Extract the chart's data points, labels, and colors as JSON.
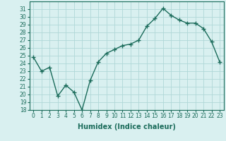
{
  "x": [
    0,
    1,
    2,
    3,
    4,
    5,
    6,
    7,
    8,
    9,
    10,
    11,
    12,
    13,
    14,
    15,
    16,
    17,
    18,
    19,
    20,
    21,
    22,
    23
  ],
  "y": [
    24.8,
    23.0,
    23.5,
    19.8,
    21.2,
    20.3,
    18.0,
    21.8,
    24.2,
    25.3,
    25.8,
    26.3,
    26.5,
    27.0,
    28.8,
    29.8,
    31.1,
    30.2,
    29.6,
    29.2,
    29.2,
    28.5,
    26.8,
    24.2
  ],
  "line_color": "#1a6b5a",
  "marker": "+",
  "marker_size": 4,
  "marker_linewidth": 1.0,
  "bg_color": "#d9f0f0",
  "grid_color": "#b0d8d8",
  "xlabel": "Humidex (Indice chaleur)",
  "ylim": [
    18,
    32
  ],
  "xlim": [
    -0.5,
    23.5
  ],
  "yticks": [
    18,
    19,
    20,
    21,
    22,
    23,
    24,
    25,
    26,
    27,
    28,
    29,
    30,
    31
  ],
  "xticks": [
    0,
    1,
    2,
    3,
    4,
    5,
    6,
    7,
    8,
    9,
    10,
    11,
    12,
    13,
    14,
    15,
    16,
    17,
    18,
    19,
    20,
    21,
    22,
    23
  ],
  "tick_label_size": 5.5,
  "xlabel_size": 7.0,
  "linewidth": 1.0
}
